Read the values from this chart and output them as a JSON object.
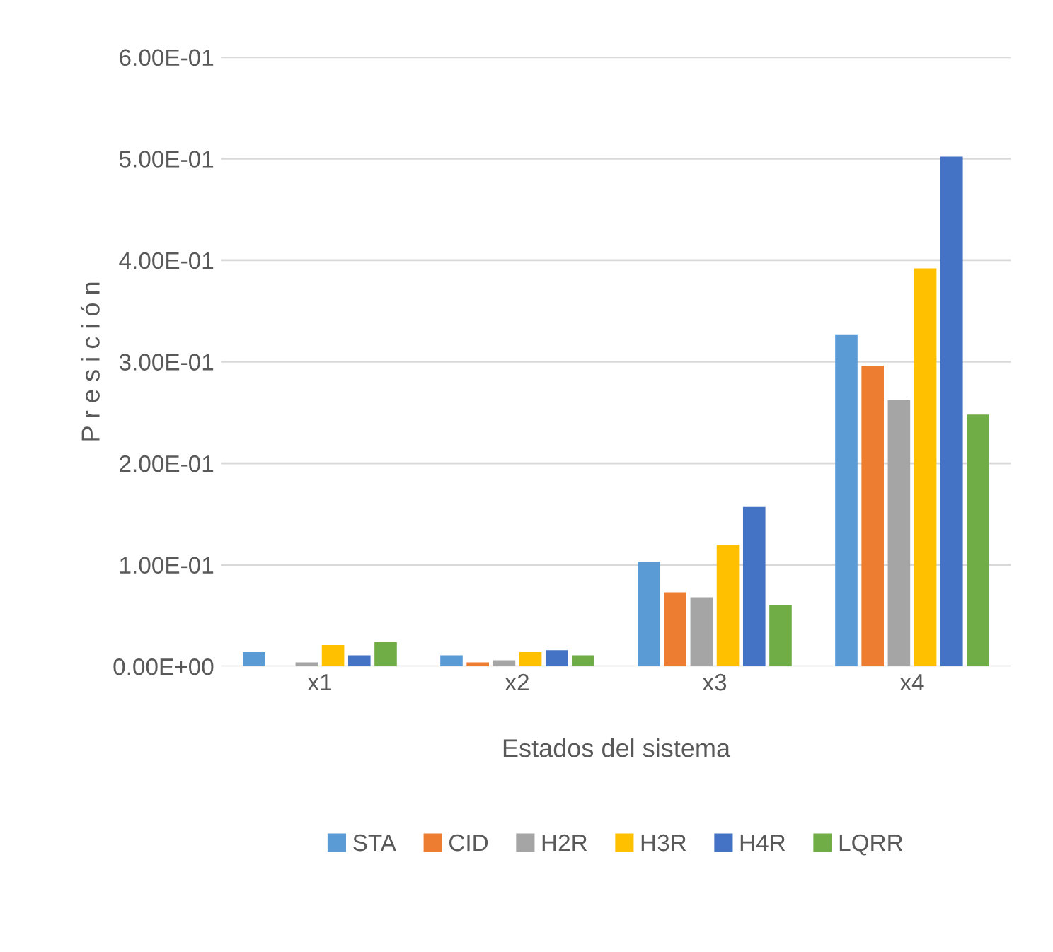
{
  "chart_data": {
    "type": "bar",
    "xlabel": "Estados del sistema",
    "ylabel": "P r e s i c i ó n",
    "categories": [
      "x1",
      "x2",
      "x3",
      "x4"
    ],
    "series": [
      {
        "name": "STA",
        "color": "#5b9bd5",
        "values": [
          0.014,
          0.011,
          0.103,
          0.327
        ]
      },
      {
        "name": "CID",
        "color": "#ed7d31",
        "values": [
          0,
          0.004,
          0.073,
          0.296
        ]
      },
      {
        "name": "H2R",
        "color": "#a5a5a5",
        "values": [
          0.004,
          0.006,
          0.068,
          0.262
        ]
      },
      {
        "name": "H3R",
        "color": "#ffc000",
        "values": [
          0.021,
          0.014,
          0.12,
          0.392
        ]
      },
      {
        "name": "H4R",
        "color": "#4472c4",
        "values": [
          0.011,
          0.016,
          0.157,
          0.502
        ]
      },
      {
        "name": "LQRR",
        "color": "#70ad47",
        "values": [
          0.024,
          0.011,
          0.06,
          0.248
        ]
      }
    ],
    "ylim": [
      0,
      0.6
    ],
    "yticks": [
      {
        "value": 0,
        "label": "0.00E+00"
      },
      {
        "value": 0.1,
        "label": "1.00E-01"
      },
      {
        "value": 0.2,
        "label": "2.00E-01"
      },
      {
        "value": 0.3,
        "label": "3.00E-01"
      },
      {
        "value": 0.4,
        "label": "4.00E-01"
      },
      {
        "value": 0.5,
        "label": "5.00E-01"
      },
      {
        "value": 0.6,
        "label": "6.00E-01"
      }
    ],
    "grid": "y",
    "legend": "bottom"
  }
}
